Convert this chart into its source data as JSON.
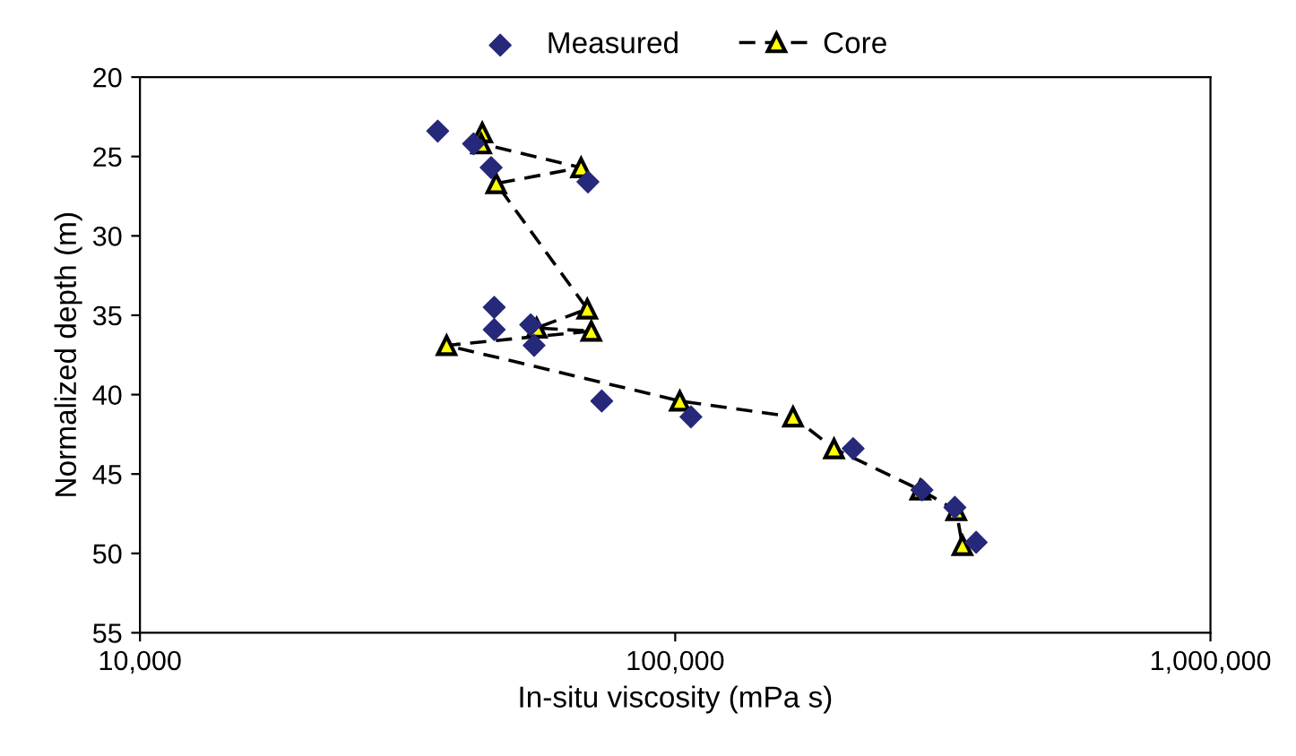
{
  "chart_data": {
    "type": "scatter",
    "xlabel": "In-situ viscosity (mPa s)",
    "ylabel": "Normalized depth (m)",
    "log": "x",
    "xlim": [
      10000,
      1000000
    ],
    "xticks": [
      {
        "value": 10000,
        "label": "10,000"
      },
      {
        "value": 100000,
        "label": "100,000"
      },
      {
        "value": 1000000,
        "label": "1,000,000"
      }
    ],
    "ylim": [
      55,
      20
    ],
    "yticks": [
      20,
      25,
      30,
      35,
      40,
      45,
      50,
      55
    ],
    "grid": false,
    "legend": "top",
    "series": [
      {
        "name": "Measured",
        "color": "#26287a",
        "marker": "diamond",
        "x": [
          36000,
          42000,
          45300,
          68700,
          45900,
          45900,
          53700,
          54500,
          72900,
          107000,
          215000,
          289000,
          333000,
          365000
        ],
        "values": [
          23.4,
          24.2,
          25.7,
          26.6,
          34.5,
          35.9,
          35.6,
          36.9,
          40.4,
          41.4,
          43.4,
          46.0,
          47.1,
          49.3
        ]
      },
      {
        "name": "Core",
        "type": "line",
        "color": "#ffff00",
        "marker": "triangle",
        "line_style": "dashed",
        "x": [
          43600,
          43400,
          66700,
          46300,
          68500,
          55100,
          69700,
          37400,
          102000,
          166000,
          198000,
          287000,
          335000,
          344000
        ],
        "values": [
          23.5,
          24.2,
          25.7,
          26.7,
          34.6,
          35.8,
          36.0,
          36.9,
          40.4,
          41.4,
          43.4,
          46.0,
          47.3,
          49.5
        ]
      }
    ]
  }
}
